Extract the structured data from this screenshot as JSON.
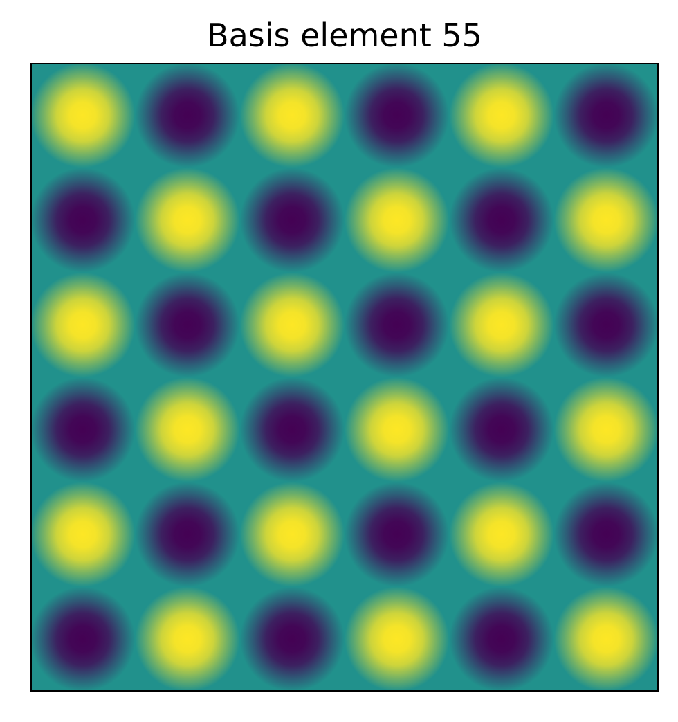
{
  "chart_data": {
    "type": "heatmap",
    "title": "Basis element 55",
    "xlabel": "",
    "ylabel": "",
    "xticks": [],
    "yticks": [],
    "colormap": "viridis",
    "value_range": [
      -1,
      1
    ],
    "grid": false,
    "legend": "none",
    "function": "cos(kx * x) * cos(ky * y), x and y over [0, 1]",
    "kx": 6,
    "ky": 6,
    "grid_size": [
      6,
      6
    ],
    "top_left_cell": "max",
    "values": [
      [
        1,
        -1,
        1,
        -1,
        1,
        -1
      ],
      [
        -1,
        1,
        -1,
        1,
        -1,
        1
      ],
      [
        1,
        -1,
        1,
        -1,
        1,
        -1
      ],
      [
        -1,
        1,
        -1,
        1,
        -1,
        1
      ],
      [
        1,
        -1,
        1,
        -1,
        1,
        -1
      ],
      [
        -1,
        1,
        -1,
        1,
        -1,
        1
      ]
    ],
    "colors": {
      "max": "#fde725",
      "mid": "#21918c",
      "min": "#440154",
      "frame": "#000000"
    }
  }
}
